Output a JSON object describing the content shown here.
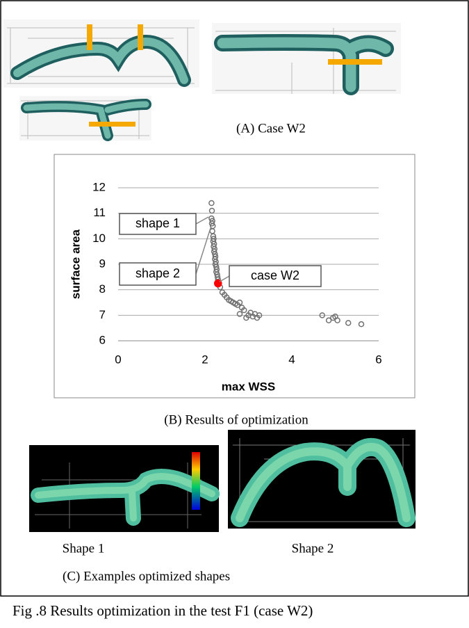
{
  "captions": {
    "a": "(A)  Case W2",
    "b": "(B)  Results of optimization",
    "shape1": "Shape 1",
    "shape2": "Shape 2",
    "c": "(C)  Examples optimized shapes",
    "figure": "Fig .8    Results optimization in the test F1 (case W2)"
  },
  "chart_data": {
    "type": "scatter",
    "x_label": "max WSS",
    "y_label": "surface area",
    "xlim": [
      0,
      6
    ],
    "xticks": [
      0,
      2,
      4,
      6
    ],
    "ylim": [
      6,
      12
    ],
    "yticks": [
      6,
      7,
      8,
      9,
      10,
      11,
      12
    ],
    "grid": true,
    "annotations": [
      "shape 1",
      "shape 2",
      "case W2"
    ],
    "series": [
      {
        "color": "#707070",
        "marker": "open",
        "x": [
          2.15,
          2.16,
          2.15,
          2.17,
          2.16,
          2.18,
          2.17,
          2.19,
          2.2,
          2.19,
          2.21,
          2.2,
          2.22,
          2.21,
          2.23,
          2.24,
          2.23,
          2.25,
          2.24,
          2.26,
          2.27,
          2.26,
          2.28,
          2.29,
          2.3,
          2.35,
          2.4,
          2.45,
          2.5,
          2.55,
          2.6,
          2.65,
          2.7,
          2.75,
          2.8,
          2.85,
          2.8,
          2.9,
          2.95,
          3.0,
          3.05,
          3.1,
          3.15,
          3.2,
          3.25,
          4.7,
          4.85,
          4.95,
          5.0,
          5.05,
          5.3,
          5.6
        ],
        "values": [
          11.4,
          11.1,
          10.8,
          10.7,
          10.6,
          10.5,
          10.3,
          10.1,
          10.0,
          9.9,
          9.8,
          9.7,
          9.6,
          9.5,
          9.4,
          9.3,
          9.2,
          9.1,
          9.0,
          8.9,
          8.8,
          8.7,
          8.6,
          8.5,
          8.4,
          8.1,
          7.9,
          7.8,
          7.7,
          7.6,
          7.55,
          7.5,
          7.45,
          7.4,
          7.5,
          7.3,
          7.05,
          7.2,
          6.9,
          7.0,
          7.1,
          6.95,
          7.05,
          6.9,
          7.0,
          7.0,
          6.8,
          6.9,
          6.95,
          6.8,
          6.7,
          6.65
        ]
      },
      {
        "color": "#ff0000",
        "marker": "filled",
        "x": [
          2.3
        ],
        "values": [
          8.25
        ]
      }
    ]
  }
}
